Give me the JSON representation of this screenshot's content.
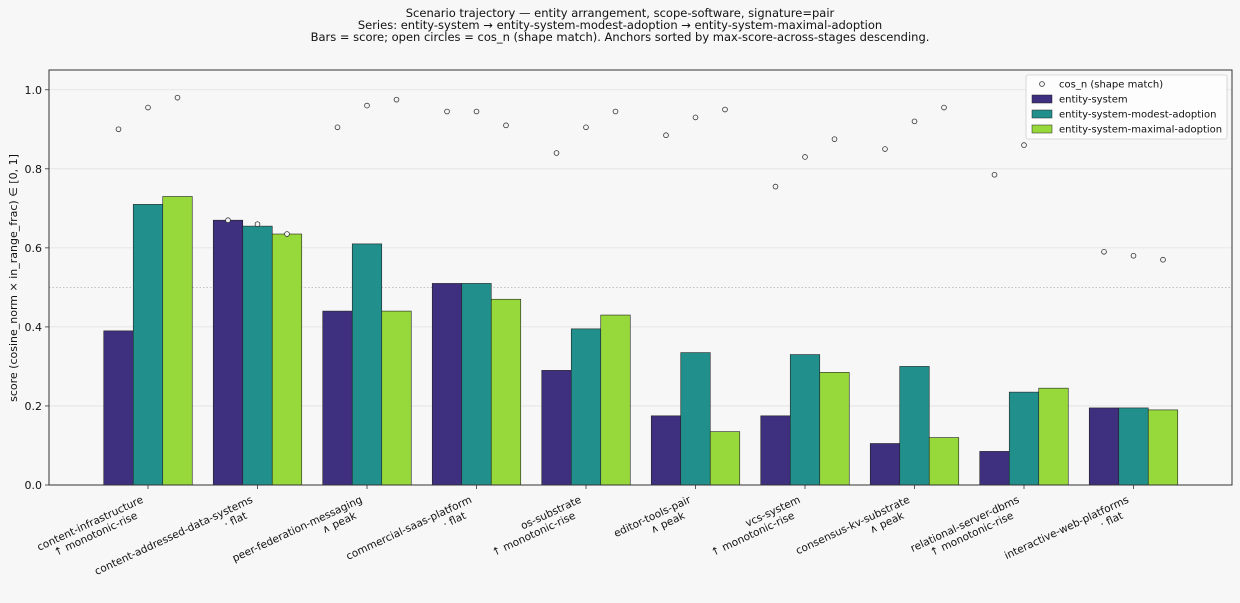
{
  "title_lines": [
    "Scenario trajectory — entity arrangement, scope-software, signature=pair",
    "Series: entity-system → entity-system-modest-adoption → entity-system-maximal-adoption",
    "Bars = score; open circles = cos_n (shape match). Anchors sorted by max-score-across-stages descending."
  ],
  "chart_data": {
    "type": "bar",
    "ylabel": "score (cosine_norm × in_range_frac) ∈ [0, 1]",
    "xlabel": "",
    "ylim": [
      0,
      1.05
    ],
    "yticks": [
      "0.0",
      "0.2",
      "0.4",
      "0.6",
      "0.8",
      "1.0"
    ],
    "ytick_values": [
      0,
      0.2,
      0.4,
      0.6,
      0.8,
      1.0
    ],
    "reference_line": 0.5,
    "grid": "horizontal",
    "legend_position": "top-right",
    "categories": [
      {
        "name": "content-infrastructure",
        "trend": "↑ monotonic-rise"
      },
      {
        "name": "content-addressed-data-systems",
        "trend": "· flat"
      },
      {
        "name": "peer-federation-messaging",
        "trend": "∧ peak"
      },
      {
        "name": "commercial-saas-platform",
        "trend": "· flat"
      },
      {
        "name": "os-substrate",
        "trend": "↑ monotonic-rise"
      },
      {
        "name": "editor-tools-pair",
        "trend": "∧ peak"
      },
      {
        "name": "vcs-system",
        "trend": "↑ monotonic-rise"
      },
      {
        "name": "consensus-kv-substrate",
        "trend": "∧ peak"
      },
      {
        "name": "relational-server-dbms",
        "trend": "↑ monotonic-rise"
      },
      {
        "name": "interactive-web-platforms",
        "trend": "· flat"
      }
    ],
    "series": [
      {
        "name": "entity-system",
        "color": "#3f2f7f",
        "values": [
          0.39,
          0.67,
          0.44,
          0.51,
          0.29,
          0.175,
          0.175,
          0.105,
          0.085,
          0.195
        ],
        "cos_n": [
          0.9,
          0.67,
          0.905,
          0.945,
          0.84,
          0.885,
          0.755,
          0.85,
          0.785,
          0.59
        ]
      },
      {
        "name": "entity-system-modest-adoption",
        "color": "#21908c",
        "values": [
          0.71,
          0.655,
          0.61,
          0.51,
          0.395,
          0.335,
          0.33,
          0.3,
          0.235,
          0.195
        ],
        "cos_n": [
          0.955,
          0.66,
          0.96,
          0.945,
          0.905,
          0.93,
          0.83,
          0.92,
          0.86,
          0.58
        ]
      },
      {
        "name": "entity-system-maximal-adoption",
        "color": "#97d83b",
        "values": [
          0.73,
          0.635,
          0.44,
          0.47,
          0.43,
          0.135,
          0.285,
          0.12,
          0.245,
          0.19
        ],
        "cos_n": [
          0.98,
          0.635,
          0.975,
          0.91,
          0.945,
          0.95,
          0.875,
          0.955,
          null,
          0.57
        ]
      }
    ],
    "legend_entries": [
      "cos_n (shape match)",
      "entity-system",
      "entity-system-modest-adoption",
      "entity-system-maximal-adoption"
    ]
  }
}
